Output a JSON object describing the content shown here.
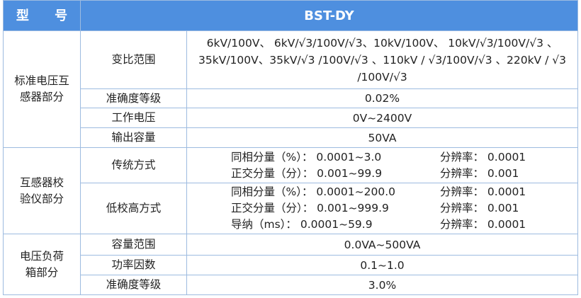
{
  "header": [
    "型 号",
    "BST-DY"
  ],
  "groups": [
    {
      "name": [
        "标准电压互",
        "感器部分"
      ],
      "rows": [
        {
          "item": "变比范围",
          "value": "6kV/100V、 6kV/√3/100V/√3、10kV/100V、 10kV/√3/100V/√3 、35kV/100V、35kV/√3 /100V/√3 、110kV / √3/100V/√3 、220kV / √3 /100V/√3"
        },
        {
          "item": "准确度等级",
          "value": "0.02%"
        },
        {
          "item": "工作电压",
          "value": "0V~2400V"
        },
        {
          "item": "输出容量",
          "value": "50VA"
        }
      ]
    },
    {
      "name": [
        "互感器校",
        "验仪部分"
      ],
      "rows": [
        {
          "item": "传统方式",
          "pairs": [
            [
              "同相分量（%）： 0.0001~3.0",
              "分辨率： 0.0001"
            ],
            [
              "正交分量（分）： 0.001~99.9",
              "分辨率： 0.001"
            ]
          ]
        },
        {
          "item": "低校高方式",
          "pairs": [
            [
              "同相分量（%）： 0.0001~200.0",
              "分辨率： 0.0001"
            ],
            [
              "正交分量（分）： 0.001~999.9",
              "分辨率： 0.001"
            ],
            [
              "导纳（ms）： 0.0001~59.9",
              "分辨率： 0.0001"
            ]
          ]
        }
      ]
    },
    {
      "name": [
        "电压负荷",
        "箱部分"
      ],
      "rows": [
        {
          "item": "容量范围",
          "value": "0.0VA~500VA"
        },
        {
          "item": "功率因数",
          "value": "0.1~1.0"
        },
        {
          "item": "准确度等级",
          "value": "3.0%"
        }
      ]
    }
  ]
}
